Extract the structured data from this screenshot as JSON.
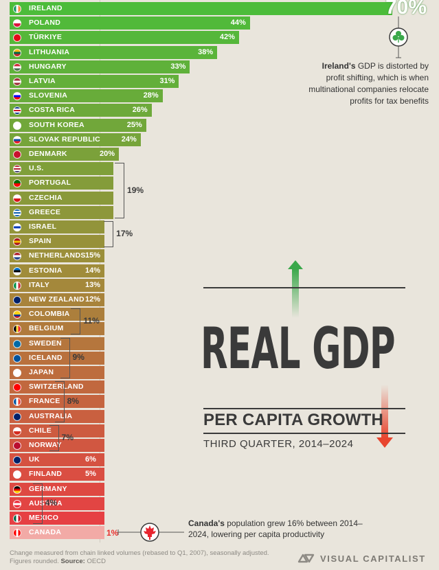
{
  "chart_data": {
    "type": "bar",
    "orientation": "horizontal",
    "title": "REAL GDP",
    "subtitle": "PER CAPITA GROWTH",
    "period": "THIRD QUARTER, 2014–2024",
    "xlim": [
      0,
      70
    ],
    "series": [
      {
        "name": "Real GDP per capita growth (%)",
        "categories": [
          "IRELAND",
          "POLAND",
          "TÜRKIYE",
          "LITHUANIA",
          "HUNGARY",
          "LATVIA",
          "SLOVENIA",
          "COSTA RICA",
          "SOUTH KOREA",
          "SLOVAK REPUBLIC",
          "DENMARK",
          "U.S.",
          "PORTUGAL",
          "CZECHIA",
          "GREECE",
          "ISRAEL",
          "SPAIN",
          "NETHERLANDS",
          "ESTONIA",
          "ITALY",
          "NEW ZEALAND",
          "COLOMBIA",
          "BELGIUM",
          "SWEDEN",
          "ICELAND",
          "JAPAN",
          "SWITZERLAND",
          "FRANCE",
          "AUSTRALIA",
          "CHILE",
          "NORWAY",
          "UK",
          "FINLAND",
          "GERMANY",
          "AUSTRIA",
          "MEXICO",
          "CANADA"
        ],
        "values": [
          70,
          44,
          42,
          38,
          33,
          31,
          28,
          26,
          25,
          24,
          20,
          19,
          19,
          19,
          19,
          17,
          17,
          15,
          14,
          13,
          12,
          11,
          11,
          9,
          9,
          9,
          8,
          8,
          8,
          7,
          7,
          6,
          5,
          4,
          4,
          4,
          1
        ]
      }
    ],
    "value_labels": [
      "70%",
      "44%",
      "42%",
      "38%",
      "33%",
      "31%",
      "28%",
      "26%",
      "25%",
      "24%",
      "20%",
      "",
      "",
      "",
      "",
      "",
      "",
      "15%",
      "14%",
      "13%",
      "12%",
      "",
      "",
      "",
      "",
      "",
      "",
      "",
      "",
      "",
      "",
      "6%",
      "5%",
      "",
      "",
      "",
      "1%"
    ],
    "groups": [
      {
        "start": 11,
        "end": 14,
        "label": "19%"
      },
      {
        "start": 15,
        "end": 16,
        "label": "17%"
      },
      {
        "start": 21,
        "end": 22,
        "label": "11%"
      },
      {
        "start": 23,
        "end": 25,
        "label": "9%"
      },
      {
        "start": 26,
        "end": 28,
        "label": "8%"
      },
      {
        "start": 29,
        "end": 30,
        "label": "7%"
      },
      {
        "start": 33,
        "end": 35,
        "label": "4%"
      }
    ],
    "annotations": {
      "ireland_bold": "Ireland's",
      "ireland_text": " GDP is distorted by profit shifting, which is when multinational companies relocate profits for tax benefits",
      "canada_bold": "Canada's",
      "canada_text": " population grew 16% between 2014–2024, lowering per capita productivity"
    }
  },
  "footer": {
    "note": "Change measured from chain linked volumes (rebased to Q1, 2007), seasonally adjusted.",
    "note2": "Figures rounded.",
    "source_label": "Source:",
    "source": "OECD"
  },
  "brand": "VISUAL CAPITALIST",
  "flags": {
    "IRELAND": [
      "#169b62",
      "#ffffff",
      "#ff883e"
    ],
    "POLAND": [
      "#ffffff",
      "#dc143c"
    ],
    "TÜRKIYE": [
      "#e30a17"
    ],
    "LITHUANIA": [
      "#fdb913",
      "#006a44",
      "#c1272d"
    ],
    "HUNGARY": [
      "#ce2939",
      "#ffffff",
      "#477050"
    ],
    "LATVIA": [
      "#9e3039",
      "#ffffff",
      "#9e3039"
    ],
    "SLOVENIA": [
      "#ffffff",
      "#0000ff",
      "#ff0000"
    ],
    "COSTA RICA": [
      "#002b7f",
      "#ffffff",
      "#ce1126",
      "#ffffff",
      "#002b7f"
    ],
    "SOUTH KOREA": [
      "#ffffff"
    ],
    "SLOVAK REPUBLIC": [
      "#ffffff",
      "#0b4ea2",
      "#ee1c25"
    ],
    "DENMARK": [
      "#c8102e"
    ],
    "U.S.": [
      "#b22234",
      "#ffffff",
      "#b22234",
      "#ffffff",
      "#3c3b6e"
    ],
    "PORTUGAL": [
      "#006600",
      "#ff0000"
    ],
    "CZECHIA": [
      "#ffffff",
      "#d7141a"
    ],
    "GREECE": [
      "#0d5eaf",
      "#ffffff",
      "#0d5eaf",
      "#ffffff",
      "#0d5eaf"
    ],
    "ISRAEL": [
      "#ffffff",
      "#0038b8",
      "#ffffff"
    ],
    "SPAIN": [
      "#aa151b",
      "#f1bf00",
      "#aa151b"
    ],
    "NETHERLANDS": [
      "#ae1c28",
      "#ffffff",
      "#21468b"
    ],
    "ESTONIA": [
      "#0072ce",
      "#000000",
      "#ffffff"
    ],
    "ITALY": [
      "#009246",
      "#ffffff",
      "#ce2b37"
    ],
    "NEW ZEALAND": [
      "#012169"
    ],
    "COLOMBIA": [
      "#fcd116",
      "#fcd116",
      "#003893",
      "#ce1126"
    ],
    "BELGIUM": [
      "#000000",
      "#fae042",
      "#ed2939"
    ],
    "SWEDEN": [
      "#006aa7"
    ],
    "ICELAND": [
      "#02529c"
    ],
    "JAPAN": [
      "#ffffff"
    ],
    "SWITZERLAND": [
      "#ff0000"
    ],
    "FRANCE": [
      "#0055a4",
      "#ffffff",
      "#ef4135"
    ],
    "AUSTRALIA": [
      "#012169"
    ],
    "CHILE": [
      "#ffffff",
      "#d52b1e"
    ],
    "NORWAY": [
      "#ba0c2f"
    ],
    "UK": [
      "#012169"
    ],
    "FINLAND": [
      "#ffffff"
    ],
    "GERMANY": [
      "#000000",
      "#dd0000",
      "#ffce00"
    ],
    "AUSTRIA": [
      "#ed2939",
      "#ffffff",
      "#ed2939"
    ],
    "MEXICO": [
      "#006847",
      "#ffffff",
      "#ce1126"
    ],
    "CANADA": [
      "#ff0000",
      "#ffffff",
      "#ff0000"
    ]
  },
  "colors": {
    "bar_top": "#4cbc3a",
    "bar_mid": "#a08c3a",
    "bar_bottom": "#ea3c44",
    "canada": "#f2aaa6",
    "arrow_up": "#3aa84a",
    "arrow_down": "#e8452f"
  }
}
